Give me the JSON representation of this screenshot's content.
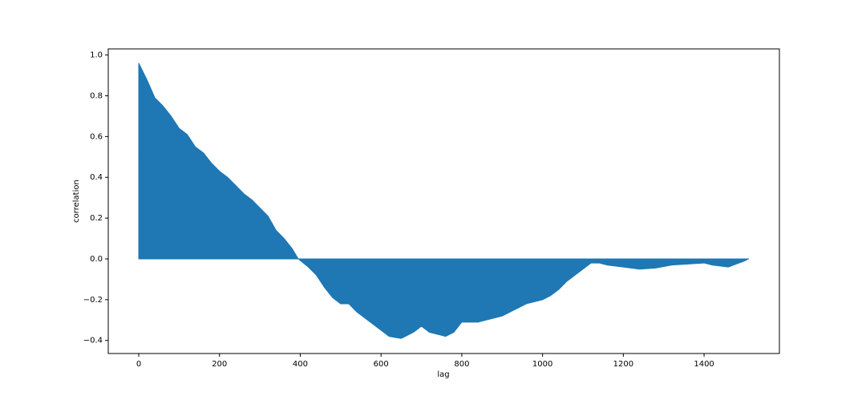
{
  "chart_data": {
    "type": "area",
    "x_label": "lag",
    "y_label": "correlation",
    "color": "#1f77b4",
    "x": [
      0,
      20,
      40,
      60,
      80,
      100,
      120,
      140,
      160,
      180,
      200,
      220,
      240,
      260,
      280,
      300,
      320,
      340,
      360,
      380,
      395,
      420,
      440,
      460,
      480,
      500,
      520,
      540,
      560,
      580,
      600,
      620,
      650,
      680,
      700,
      720,
      760,
      780,
      800,
      820,
      840,
      860,
      880,
      900,
      920,
      940,
      960,
      1000,
      1020,
      1040,
      1060,
      1080,
      1100,
      1120,
      1140,
      1160,
      1200,
      1240,
      1280,
      1320,
      1360,
      1400,
      1420,
      1460,
      1500,
      1510
    ],
    "values": [
      0.96,
      0.88,
      0.79,
      0.75,
      0.7,
      0.64,
      0.61,
      0.55,
      0.52,
      0.47,
      0.43,
      0.4,
      0.36,
      0.32,
      0.29,
      0.25,
      0.21,
      0.14,
      0.1,
      0.05,
      0.0,
      -0.04,
      -0.08,
      -0.14,
      -0.19,
      -0.22,
      -0.22,
      -0.26,
      -0.29,
      -0.32,
      -0.35,
      -0.38,
      -0.39,
      -0.36,
      -0.33,
      -0.36,
      -0.38,
      -0.36,
      -0.31,
      -0.31,
      -0.31,
      -0.3,
      -0.29,
      -0.28,
      -0.26,
      -0.24,
      -0.22,
      -0.2,
      -0.18,
      -0.15,
      -0.11,
      -0.08,
      -0.05,
      -0.02,
      -0.02,
      -0.03,
      -0.04,
      -0.05,
      -0.045,
      -0.03,
      -0.025,
      -0.02,
      -0.03,
      -0.04,
      -0.01,
      0.0
    ],
    "xlim": [
      -75.5,
      1586.5
    ],
    "ylim": [
      -0.464,
      1.03
    ],
    "xticks": [
      0,
      200,
      400,
      600,
      800,
      1000,
      1200,
      1400
    ],
    "yticks": [
      {
        "value": -0.4,
        "label": "−0.4"
      },
      {
        "value": -0.2,
        "label": "−0.2"
      },
      {
        "value": 0,
        "label": "0.0"
      },
      0.2,
      0.4,
      0.6,
      0.8,
      {
        "value": 1,
        "label": "1.0"
      }
    ]
  }
}
